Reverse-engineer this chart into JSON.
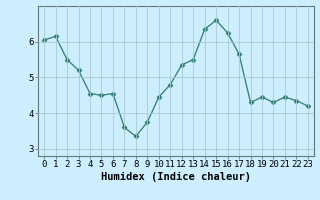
{
  "x": [
    0,
    1,
    2,
    3,
    4,
    5,
    6,
    7,
    8,
    9,
    10,
    11,
    12,
    13,
    14,
    15,
    16,
    17,
    18,
    19,
    20,
    21,
    22,
    23
  ],
  "y": [
    6.05,
    6.15,
    5.5,
    5.2,
    4.55,
    4.5,
    4.55,
    3.6,
    3.35,
    3.75,
    4.45,
    4.8,
    5.35,
    5.5,
    6.35,
    6.6,
    6.25,
    5.65,
    4.3,
    4.45,
    4.3,
    4.45,
    4.35,
    4.2
  ],
  "line_color": "#2e7d6e",
  "marker": "D",
  "marker_size": 2.5,
  "bg_color": "#cceeff",
  "grid_color": "#aacccc",
  "xlabel": "Humidex (Indice chaleur)",
  "xlabel_fontsize": 7.5,
  "tick_fontsize": 6.5,
  "ylim": [
    2.8,
    7.0
  ],
  "xlim": [
    -0.5,
    23.5
  ],
  "yticks": [
    3,
    4,
    5,
    6
  ],
  "xticks": [
    0,
    1,
    2,
    3,
    4,
    5,
    6,
    7,
    8,
    9,
    10,
    11,
    12,
    13,
    14,
    15,
    16,
    17,
    18,
    19,
    20,
    21,
    22,
    23
  ]
}
